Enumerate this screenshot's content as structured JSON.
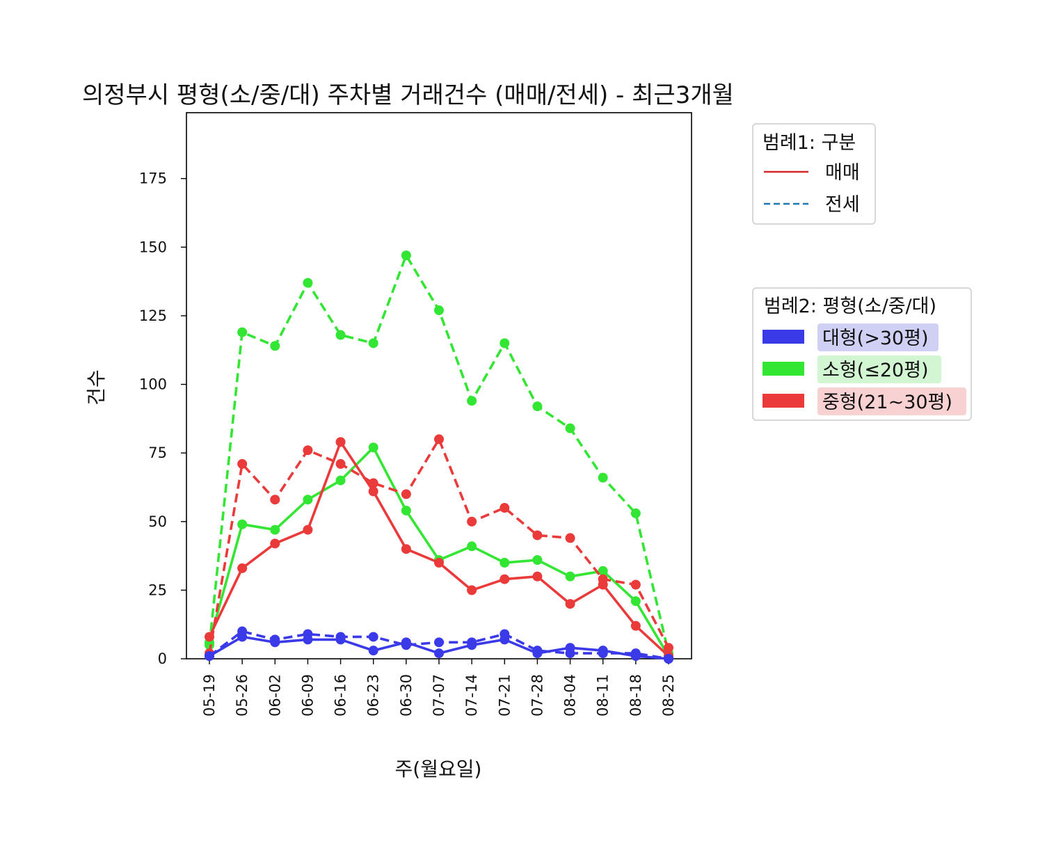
{
  "chart_data": {
    "type": "line",
    "title": "의정부시 평형(소/중/대) 주차별 거래건수 (매매/전세) - 최근3개월",
    "xlabel": "주(월요일)",
    "ylabel": "건수",
    "ylim": [
      0,
      199
    ],
    "yticks": [
      0,
      25,
      50,
      75,
      100,
      125,
      150,
      175
    ],
    "categories": [
      "05-19",
      "05-26",
      "06-02",
      "06-09",
      "06-16",
      "06-23",
      "06-30",
      "07-07",
      "07-14",
      "07-21",
      "07-28",
      "08-04",
      "08-11",
      "08-18",
      "08-25"
    ],
    "grid": false,
    "legend1": {
      "title": "범례1: 구분",
      "placement": "upper right, outside plot",
      "items": [
        {
          "label": "매매",
          "style": "solid",
          "color": "#d62728"
        },
        {
          "label": "전세",
          "style": "dashed",
          "color": "#1f77b4"
        }
      ]
    },
    "legend2": {
      "title": "범례2: 평형(소/중/대)",
      "placement": "right, outside plot",
      "items": [
        {
          "label": "대형(>30평)",
          "color": "#3a3ae8",
          "bg": "#d0d0f5"
        },
        {
          "label": "소형(≤20평)",
          "color": "#33e633",
          "bg": "#d2f6d2"
        },
        {
          "label": "중형(21~30평)",
          "color": "#ea3a3a",
          "bg": "#f8d2d2"
        }
      ]
    },
    "series": [
      {
        "name": "소형(≤20평) 전세",
        "size": "소형",
        "kind": "전세",
        "color": "#33e633",
        "style": "dashed",
        "values": [
          5,
          119,
          114,
          137,
          118,
          115,
          147,
          127,
          94,
          115,
          92,
          84,
          66,
          53,
          2
        ]
      },
      {
        "name": "소형(≤20평) 매매",
        "size": "소형",
        "kind": "매매",
        "color": "#33e633",
        "style": "solid",
        "values": [
          6,
          49,
          47,
          58,
          65,
          77,
          54,
          36,
          41,
          35,
          36,
          30,
          32,
          21,
          1
        ]
      },
      {
        "name": "중형(21~30평) 전세",
        "size": "중형",
        "kind": "전세",
        "color": "#ea3a3a",
        "style": "dashed",
        "values": [
          2,
          71,
          58,
          76,
          71,
          64,
          60,
          80,
          50,
          55,
          45,
          44,
          29,
          27,
          4
        ]
      },
      {
        "name": "중형(21~30평) 매매",
        "size": "중형",
        "kind": "매매",
        "color": "#ea3a3a",
        "style": "solid",
        "values": [
          8,
          33,
          42,
          47,
          79,
          61,
          40,
          35,
          25,
          29,
          30,
          20,
          27,
          12,
          1
        ]
      },
      {
        "name": "대형(>30평) 전세",
        "size": "대형",
        "kind": "전세",
        "color": "#3a3ae8",
        "style": "dashed",
        "values": [
          1,
          10,
          7,
          9,
          8,
          8,
          5,
          6,
          6,
          9,
          3,
          2,
          2,
          2,
          0
        ]
      },
      {
        "name": "대형(>30평) 매매",
        "size": "대형",
        "kind": "매매",
        "color": "#3a3ae8",
        "style": "solid",
        "values": [
          1,
          8,
          6,
          7,
          7,
          3,
          6,
          2,
          5,
          7,
          2,
          4,
          3,
          1,
          0
        ]
      }
    ]
  }
}
